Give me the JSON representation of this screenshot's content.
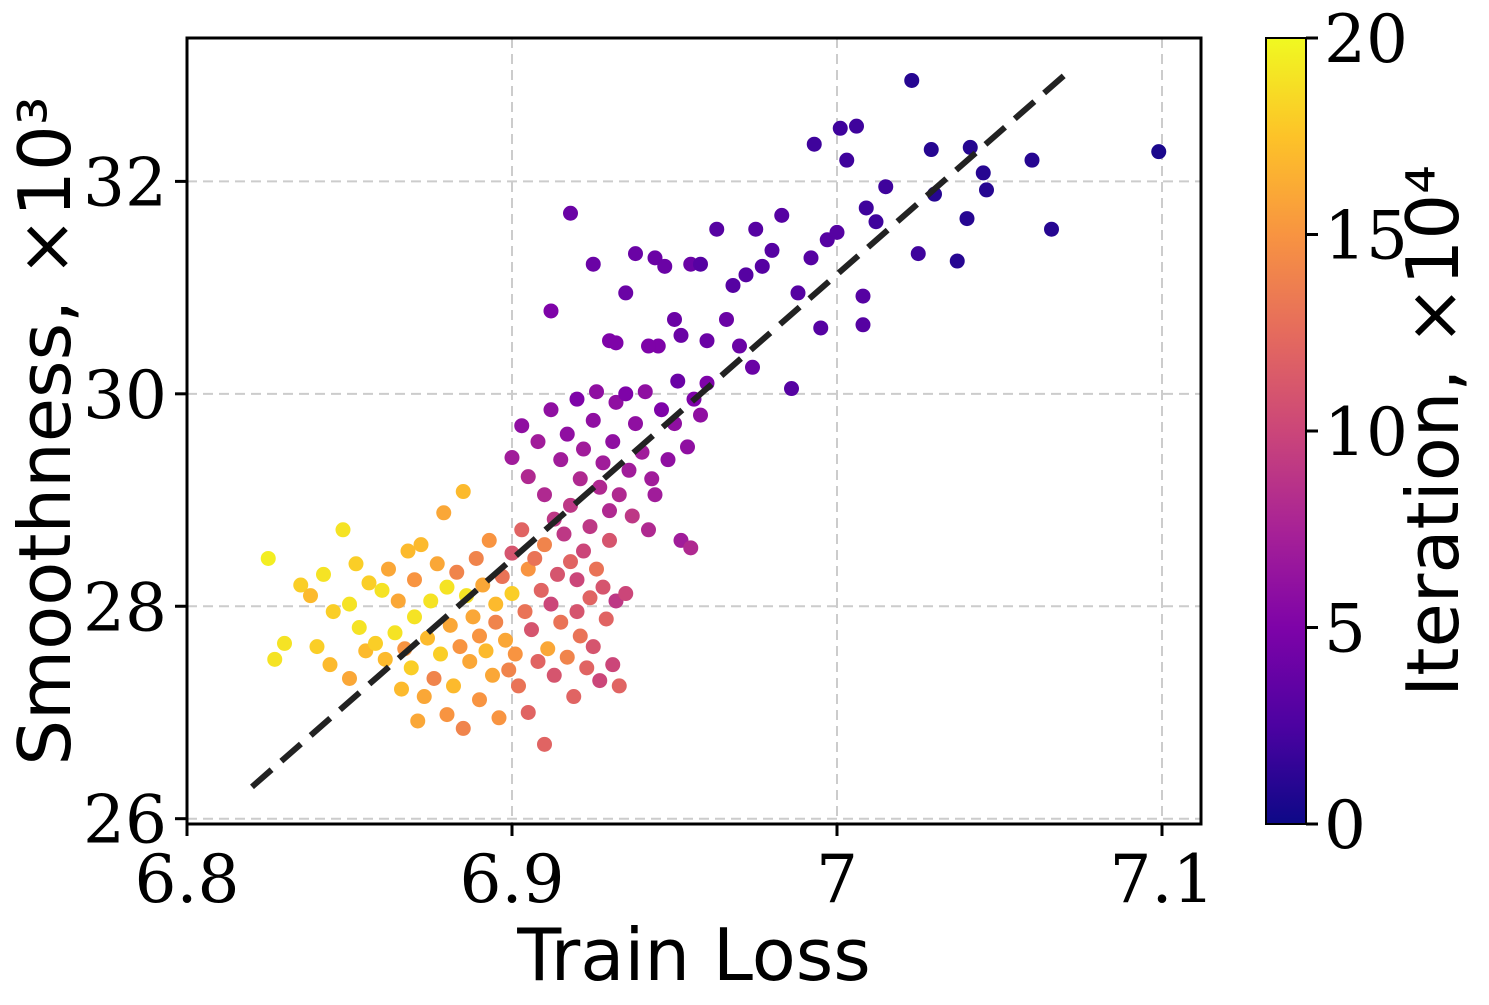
{
  "chart_data": {
    "type": "scatter",
    "xlabel": "Train Loss",
    "ylabel": "Smoothness, ×10³",
    "colorbar_label": "Iteration, ×10⁴",
    "xlim": [
      6.8,
      7.112
    ],
    "ylim": [
      25.95,
      33.35
    ],
    "xticks": [
      6.8,
      6.9,
      7.0,
      7.1
    ],
    "xtick_labels": [
      "6.8",
      "6.9",
      "7",
      "7.1"
    ],
    "yticks": [
      26,
      28,
      30,
      32
    ],
    "ytick_labels": [
      "26",
      "28",
      "30",
      "32"
    ],
    "colorbar_range": [
      0,
      20
    ],
    "colorbar_ticks": [
      0,
      5,
      10,
      15,
      20
    ],
    "colorbar_tick_labels": [
      "0",
      "5",
      "10",
      "15",
      "20"
    ],
    "colormap": "plasma",
    "grid": true,
    "trend_line": {
      "x": [
        6.82,
        7.07
      ],
      "y": [
        26.3,
        33.0
      ],
      "color": "#222222",
      "style": "dashed"
    },
    "points": [
      {
        "x": 6.825,
        "y": 28.45,
        "c": 19.5
      },
      {
        "x": 6.827,
        "y": 27.5,
        "c": 19
      },
      {
        "x": 6.83,
        "y": 27.65,
        "c": 19
      },
      {
        "x": 6.835,
        "y": 28.2,
        "c": 18
      },
      {
        "x": 6.838,
        "y": 28.1,
        "c": 17
      },
      {
        "x": 6.84,
        "y": 27.62,
        "c": 18
      },
      {
        "x": 6.842,
        "y": 28.3,
        "c": 19
      },
      {
        "x": 6.844,
        "y": 27.45,
        "c": 17
      },
      {
        "x": 6.845,
        "y": 27.95,
        "c": 18
      },
      {
        "x": 6.848,
        "y": 28.72,
        "c": 19
      },
      {
        "x": 6.85,
        "y": 28.02,
        "c": 19
      },
      {
        "x": 6.85,
        "y": 27.32,
        "c": 16
      },
      {
        "x": 6.852,
        "y": 28.4,
        "c": 18
      },
      {
        "x": 6.853,
        "y": 27.8,
        "c": 19
      },
      {
        "x": 6.855,
        "y": 27.58,
        "c": 17
      },
      {
        "x": 6.856,
        "y": 28.22,
        "c": 18
      },
      {
        "x": 6.858,
        "y": 27.65,
        "c": 18
      },
      {
        "x": 6.86,
        "y": 28.15,
        "c": 19
      },
      {
        "x": 6.861,
        "y": 27.5,
        "c": 17
      },
      {
        "x": 6.862,
        "y": 28.35,
        "c": 16
      },
      {
        "x": 6.864,
        "y": 27.75,
        "c": 19
      },
      {
        "x": 6.865,
        "y": 28.05,
        "c": 16
      },
      {
        "x": 6.866,
        "y": 27.22,
        "c": 17
      },
      {
        "x": 6.867,
        "y": 27.6,
        "c": 15
      },
      {
        "x": 6.868,
        "y": 28.52,
        "c": 17
      },
      {
        "x": 6.869,
        "y": 27.42,
        "c": 18
      },
      {
        "x": 6.87,
        "y": 28.25,
        "c": 15
      },
      {
        "x": 6.87,
        "y": 27.9,
        "c": 19
      },
      {
        "x": 6.871,
        "y": 26.92,
        "c": 16
      },
      {
        "x": 6.872,
        "y": 28.58,
        "c": 17
      },
      {
        "x": 6.873,
        "y": 27.15,
        "c": 16
      },
      {
        "x": 6.874,
        "y": 27.7,
        "c": 17
      },
      {
        "x": 6.875,
        "y": 28.05,
        "c": 19
      },
      {
        "x": 6.876,
        "y": 27.32,
        "c": 14
      },
      {
        "x": 6.877,
        "y": 28.4,
        "c": 16
      },
      {
        "x": 6.878,
        "y": 27.55,
        "c": 18
      },
      {
        "x": 6.879,
        "y": 28.88,
        "c": 16
      },
      {
        "x": 6.88,
        "y": 28.18,
        "c": 19
      },
      {
        "x": 6.88,
        "y": 26.98,
        "c": 15
      },
      {
        "x": 6.881,
        "y": 27.82,
        "c": 16
      },
      {
        "x": 6.882,
        "y": 27.25,
        "c": 17
      },
      {
        "x": 6.883,
        "y": 28.32,
        "c": 14
      },
      {
        "x": 6.884,
        "y": 27.62,
        "c": 15
      },
      {
        "x": 6.885,
        "y": 29.08,
        "c": 17
      },
      {
        "x": 6.885,
        "y": 26.85,
        "c": 14
      },
      {
        "x": 6.886,
        "y": 28.1,
        "c": 19
      },
      {
        "x": 6.887,
        "y": 27.48,
        "c": 16
      },
      {
        "x": 6.888,
        "y": 27.9,
        "c": 16
      },
      {
        "x": 6.889,
        "y": 28.45,
        "c": 14
      },
      {
        "x": 6.89,
        "y": 27.72,
        "c": 15
      },
      {
        "x": 6.89,
        "y": 27.12,
        "c": 15
      },
      {
        "x": 6.891,
        "y": 28.2,
        "c": 16
      },
      {
        "x": 6.892,
        "y": 27.58,
        "c": 17
      },
      {
        "x": 6.893,
        "y": 28.62,
        "c": 15
      },
      {
        "x": 6.894,
        "y": 27.35,
        "c": 16
      },
      {
        "x": 6.895,
        "y": 27.85,
        "c": 14
      },
      {
        "x": 6.895,
        "y": 28.02,
        "c": 17
      },
      {
        "x": 6.896,
        "y": 26.95,
        "c": 15
      },
      {
        "x": 6.897,
        "y": 28.28,
        "c": 13
      },
      {
        "x": 6.898,
        "y": 27.68,
        "c": 16
      },
      {
        "x": 6.899,
        "y": 27.4,
        "c": 14
      },
      {
        "x": 6.9,
        "y": 28.12,
        "c": 18
      },
      {
        "x": 6.9,
        "y": 28.5,
        "c": 11
      },
      {
        "x": 6.901,
        "y": 27.55,
        "c": 15
      },
      {
        "x": 6.902,
        "y": 27.25,
        "c": 13
      },
      {
        "x": 6.903,
        "y": 28.72,
        "c": 12
      },
      {
        "x": 6.904,
        "y": 27.95,
        "c": 13
      },
      {
        "x": 6.905,
        "y": 28.35,
        "c": 15
      },
      {
        "x": 6.905,
        "y": 27.0,
        "c": 12
      },
      {
        "x": 6.906,
        "y": 27.78,
        "c": 11
      },
      {
        "x": 6.907,
        "y": 28.45,
        "c": 13
      },
      {
        "x": 6.908,
        "y": 27.48,
        "c": 12
      },
      {
        "x": 6.909,
        "y": 28.15,
        "c": 12
      },
      {
        "x": 6.91,
        "y": 28.58,
        "c": 14
      },
      {
        "x": 6.91,
        "y": 26.7,
        "c": 12
      },
      {
        "x": 6.911,
        "y": 27.6,
        "c": 16
      },
      {
        "x": 6.912,
        "y": 28.02,
        "c": 10
      },
      {
        "x": 6.913,
        "y": 27.35,
        "c": 11
      },
      {
        "x": 6.914,
        "y": 28.3,
        "c": 11
      },
      {
        "x": 6.915,
        "y": 27.85,
        "c": 13
      },
      {
        "x": 6.916,
        "y": 28.68,
        "c": 9
      },
      {
        "x": 6.917,
        "y": 27.52,
        "c": 14
      },
      {
        "x": 6.918,
        "y": 28.42,
        "c": 12
      },
      {
        "x": 6.919,
        "y": 27.15,
        "c": 12
      },
      {
        "x": 6.92,
        "y": 27.95,
        "c": 11
      },
      {
        "x": 6.92,
        "y": 28.25,
        "c": 10
      },
      {
        "x": 6.921,
        "y": 27.72,
        "c": 13
      },
      {
        "x": 6.922,
        "y": 28.52,
        "c": 10
      },
      {
        "x": 6.923,
        "y": 27.42,
        "c": 12
      },
      {
        "x": 6.924,
        "y": 28.08,
        "c": 12
      },
      {
        "x": 6.925,
        "y": 27.62,
        "c": 11
      },
      {
        "x": 6.926,
        "y": 28.35,
        "c": 13
      },
      {
        "x": 6.927,
        "y": 27.3,
        "c": 10
      },
      {
        "x": 6.928,
        "y": 28.18,
        "c": 11
      },
      {
        "x": 6.929,
        "y": 27.88,
        "c": 12
      },
      {
        "x": 6.93,
        "y": 28.62,
        "c": 11
      },
      {
        "x": 6.931,
        "y": 27.45,
        "c": 10
      },
      {
        "x": 6.932,
        "y": 28.05,
        "c": 9
      },
      {
        "x": 6.933,
        "y": 27.25,
        "c": 12
      },
      {
        "x": 6.935,
        "y": 28.12,
        "c": 10
      },
      {
        "x": 6.9,
        "y": 29.4,
        "c": 7
      },
      {
        "x": 6.903,
        "y": 29.7,
        "c": 6
      },
      {
        "x": 6.905,
        "y": 29.22,
        "c": 8
      },
      {
        "x": 6.908,
        "y": 29.55,
        "c": 7
      },
      {
        "x": 6.91,
        "y": 29.05,
        "c": 8
      },
      {
        "x": 6.912,
        "y": 29.85,
        "c": 6
      },
      {
        "x": 6.913,
        "y": 28.82,
        "c": 9
      },
      {
        "x": 6.915,
        "y": 29.38,
        "c": 7
      },
      {
        "x": 6.917,
        "y": 29.62,
        "c": 6
      },
      {
        "x": 6.918,
        "y": 28.95,
        "c": 9
      },
      {
        "x": 6.92,
        "y": 29.95,
        "c": 5
      },
      {
        "x": 6.921,
        "y": 29.2,
        "c": 8
      },
      {
        "x": 6.922,
        "y": 29.48,
        "c": 7
      },
      {
        "x": 6.924,
        "y": 28.75,
        "c": 9
      },
      {
        "x": 6.925,
        "y": 29.75,
        "c": 6
      },
      {
        "x": 6.926,
        "y": 30.02,
        "c": 6
      },
      {
        "x": 6.927,
        "y": 29.12,
        "c": 8
      },
      {
        "x": 6.928,
        "y": 29.35,
        "c": 7
      },
      {
        "x": 6.93,
        "y": 28.9,
        "c": 8
      },
      {
        "x": 6.931,
        "y": 29.55,
        "c": 6
      },
      {
        "x": 6.932,
        "y": 29.92,
        "c": 6
      },
      {
        "x": 6.933,
        "y": 29.05,
        "c": 8
      },
      {
        "x": 6.935,
        "y": 30.0,
        "c": 5
      },
      {
        "x": 6.936,
        "y": 29.28,
        "c": 7
      },
      {
        "x": 6.937,
        "y": 28.85,
        "c": 9
      },
      {
        "x": 6.938,
        "y": 29.72,
        "c": 6
      },
      {
        "x": 6.94,
        "y": 29.45,
        "c": 7
      },
      {
        "x": 6.941,
        "y": 30.02,
        "c": 6
      },
      {
        "x": 6.942,
        "y": 28.72,
        "c": 8
      },
      {
        "x": 6.943,
        "y": 29.2,
        "c": 7
      },
      {
        "x": 6.944,
        "y": 29.05,
        "c": 7
      },
      {
        "x": 6.945,
        "y": 30.45,
        "c": 5
      },
      {
        "x": 6.946,
        "y": 29.85,
        "c": 5
      },
      {
        "x": 6.948,
        "y": 29.38,
        "c": 6
      },
      {
        "x": 6.95,
        "y": 29.72,
        "c": 6
      },
      {
        "x": 6.951,
        "y": 30.12,
        "c": 4
      },
      {
        "x": 6.952,
        "y": 28.62,
        "c": 7
      },
      {
        "x": 6.954,
        "y": 29.5,
        "c": 6
      },
      {
        "x": 6.955,
        "y": 28.55,
        "c": 8
      },
      {
        "x": 6.956,
        "y": 29.95,
        "c": 5
      },
      {
        "x": 6.958,
        "y": 29.8,
        "c": 6
      },
      {
        "x": 6.96,
        "y": 30.1,
        "c": 5
      },
      {
        "x": 6.912,
        "y": 30.78,
        "c": 5
      },
      {
        "x": 6.918,
        "y": 31.7,
        "c": 4
      },
      {
        "x": 6.925,
        "y": 31.22,
        "c": 4
      },
      {
        "x": 6.93,
        "y": 30.5,
        "c": 5
      },
      {
        "x": 6.932,
        "y": 30.48,
        "c": 5
      },
      {
        "x": 6.935,
        "y": 30.95,
        "c": 4
      },
      {
        "x": 6.938,
        "y": 31.32,
        "c": 4
      },
      {
        "x": 6.942,
        "y": 30.45,
        "c": 5
      },
      {
        "x": 6.944,
        "y": 31.28,
        "c": 4
      },
      {
        "x": 6.947,
        "y": 31.2,
        "c": 4
      },
      {
        "x": 6.95,
        "y": 30.7,
        "c": 4
      },
      {
        "x": 6.952,
        "y": 30.55,
        "c": 4
      },
      {
        "x": 6.955,
        "y": 31.22,
        "c": 4
      },
      {
        "x": 6.958,
        "y": 31.22,
        "c": 3
      },
      {
        "x": 6.96,
        "y": 30.5,
        "c": 4
      },
      {
        "x": 6.963,
        "y": 31.55,
        "c": 3
      },
      {
        "x": 6.966,
        "y": 30.7,
        "c": 4
      },
      {
        "x": 6.968,
        "y": 31.02,
        "c": 3
      },
      {
        "x": 6.97,
        "y": 30.45,
        "c": 4
      },
      {
        "x": 6.972,
        "y": 31.12,
        "c": 3
      },
      {
        "x": 6.974,
        "y": 30.25,
        "c": 4
      },
      {
        "x": 6.975,
        "y": 31.55,
        "c": 3
      },
      {
        "x": 6.977,
        "y": 31.2,
        "c": 3
      },
      {
        "x": 6.98,
        "y": 31.35,
        "c": 3
      },
      {
        "x": 6.983,
        "y": 31.68,
        "c": 3
      },
      {
        "x": 6.986,
        "y": 30.05,
        "c": 3
      },
      {
        "x": 6.988,
        "y": 30.95,
        "c": 3
      },
      {
        "x": 6.992,
        "y": 31.28,
        "c": 3
      },
      {
        "x": 6.993,
        "y": 32.35,
        "c": 2
      },
      {
        "x": 6.995,
        "y": 30.62,
        "c": 3
      },
      {
        "x": 6.997,
        "y": 31.45,
        "c": 3
      },
      {
        "x": 7.0,
        "y": 31.52,
        "c": 3
      },
      {
        "x": 7.001,
        "y": 32.5,
        "c": 2
      },
      {
        "x": 7.003,
        "y": 32.2,
        "c": 2
      },
      {
        "x": 7.006,
        "y": 32.52,
        "c": 2
      },
      {
        "x": 7.008,
        "y": 30.92,
        "c": 3
      },
      {
        "x": 7.008,
        "y": 30.65,
        "c": 3
      },
      {
        "x": 7.009,
        "y": 31.75,
        "c": 2
      },
      {
        "x": 7.012,
        "y": 31.62,
        "c": 2
      },
      {
        "x": 7.015,
        "y": 31.95,
        "c": 2
      },
      {
        "x": 7.023,
        "y": 32.95,
        "c": 1
      },
      {
        "x": 7.025,
        "y": 31.32,
        "c": 2
      },
      {
        "x": 7.029,
        "y": 32.3,
        "c": 1
      },
      {
        "x": 7.03,
        "y": 31.88,
        "c": 1
      },
      {
        "x": 7.037,
        "y": 31.25,
        "c": 1
      },
      {
        "x": 7.04,
        "y": 31.65,
        "c": 1
      },
      {
        "x": 7.041,
        "y": 32.32,
        "c": 1
      },
      {
        "x": 7.045,
        "y": 32.08,
        "c": 1
      },
      {
        "x": 7.046,
        "y": 31.92,
        "c": 1
      },
      {
        "x": 7.06,
        "y": 32.2,
        "c": 1
      },
      {
        "x": 7.066,
        "y": 31.55,
        "c": 1
      },
      {
        "x": 7.099,
        "y": 32.28,
        "c": 0.5
      }
    ]
  }
}
